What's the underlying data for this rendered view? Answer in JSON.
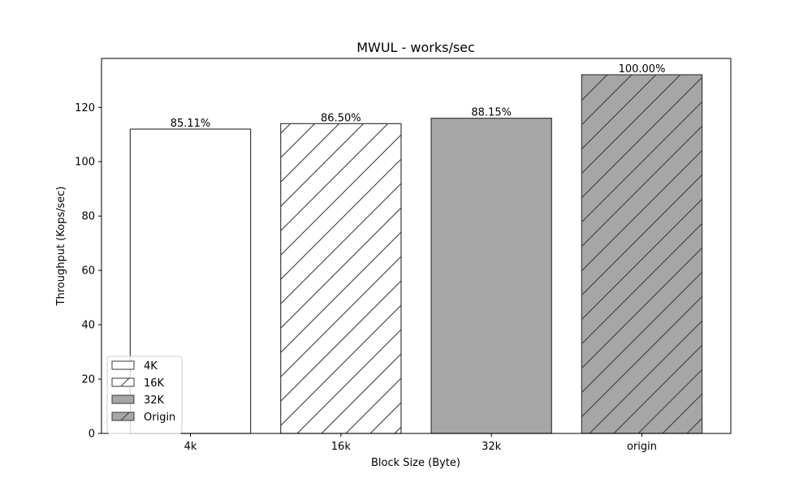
{
  "chart_data": {
    "type": "bar",
    "title": "MWUL - works/sec",
    "xlabel": "Block Size (Byte)",
    "ylabel": "Throughput (Kops/sec)",
    "categories": [
      "4k",
      "16k",
      "32k",
      "origin"
    ],
    "values": [
      112,
      114,
      116,
      132
    ],
    "data_labels": [
      "85.11%",
      "86.50%",
      "88.15%",
      "100.00%"
    ],
    "ylim": [
      0,
      138
    ],
    "yticks": [
      0,
      20,
      40,
      60,
      80,
      100,
      120
    ],
    "grid": false,
    "legend": {
      "position": "lower-left",
      "entries": [
        {
          "label": "4K",
          "fill": "#ffffff",
          "hatch": false
        },
        {
          "label": "16K",
          "fill": "#ffffff",
          "hatch": true
        },
        {
          "label": "32K",
          "fill": "#a6a6a6",
          "hatch": false
        },
        {
          "label": "Origin",
          "fill": "#a6a6a6",
          "hatch": true
        }
      ]
    },
    "bar_styles": [
      {
        "fill": "#ffffff",
        "hatch": false
      },
      {
        "fill": "#ffffff",
        "hatch": true
      },
      {
        "fill": "#a6a6a6",
        "hatch": false
      },
      {
        "fill": "#a6a6a6",
        "hatch": true
      }
    ],
    "edge_color": "#3a3a3a"
  }
}
